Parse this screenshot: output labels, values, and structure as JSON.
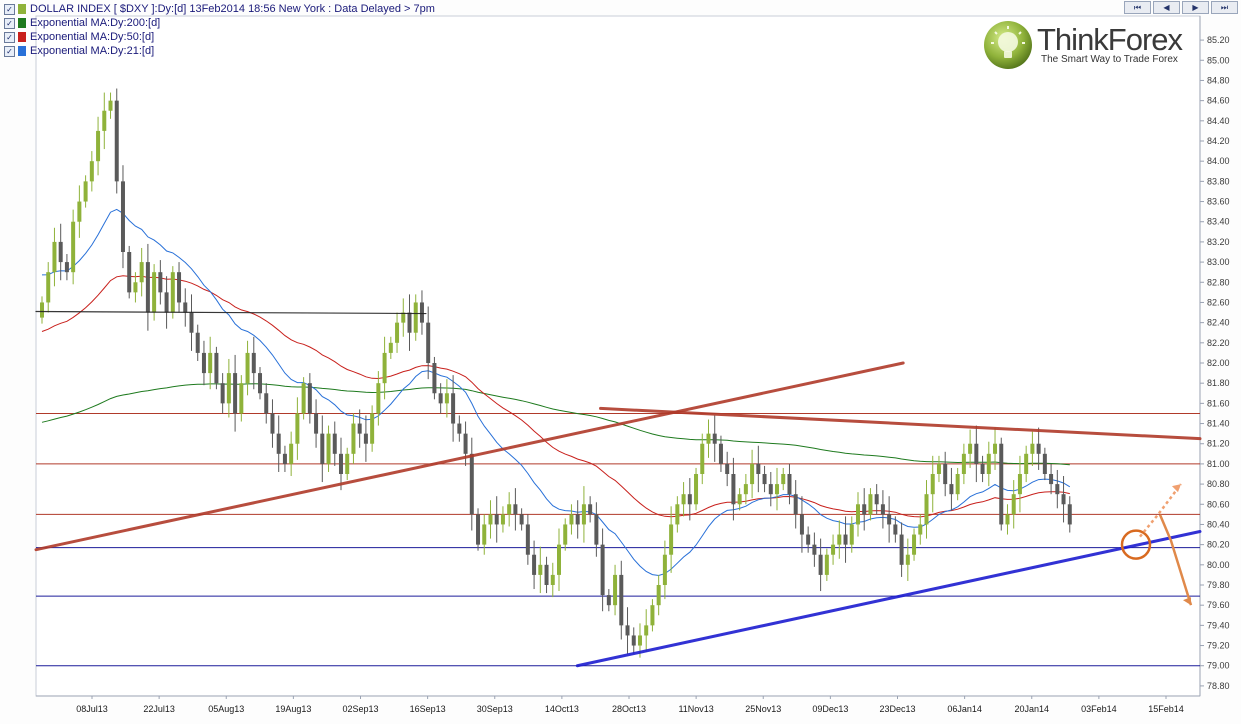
{
  "header": {
    "legend": [
      {
        "label": "DOLLAR INDEX [ $DXY ]:Dy:[d]  13Feb2014 18:56 New York : Data Delayed > 7pm",
        "color": "#8fb23a"
      },
      {
        "label": "Exponential MA:Dy:200:[d]",
        "color": "#1e7a1e"
      },
      {
        "label": "Exponential MA:Dy:50:[d]",
        "color": "#c8201c"
      },
      {
        "label": "Exponential MA:Dy:21:[d]",
        "color": "#2870d8"
      }
    ],
    "nav_buttons": [
      "⏮",
      "◀",
      "▶",
      "⏭"
    ]
  },
  "logo": {
    "title": "ThinkForex",
    "tagline": "The Smart Way to Trade Forex"
  },
  "chart_data": {
    "type": "candlestick",
    "yaxis": {
      "ticks": [
        "85.20",
        "85.00",
        "84.80",
        "84.60",
        "84.40",
        "84.20",
        "84.00",
        "83.80",
        "83.60",
        "83.40",
        "83.20",
        "83.00",
        "82.80",
        "82.60",
        "82.40",
        "82.20",
        "82.00",
        "81.80",
        "81.60",
        "81.40",
        "81.20",
        "81.00",
        "80.80",
        "80.60",
        "80.40",
        "80.20",
        "80.00",
        "79.80",
        "79.60",
        "79.40",
        "79.20",
        "79.00",
        "78.80"
      ],
      "range": [
        78.7,
        85.3
      ]
    },
    "xaxis": {
      "ticks": [
        "08Jul13",
        "22Jul13",
        "05Aug13",
        "19Aug13",
        "02Sep13",
        "16Sep13",
        "30Sep13",
        "14Oct13",
        "28Oct13",
        "11Nov13",
        "25Nov13",
        "09Dec13",
        "23Dec13",
        "06Jan14",
        "20Jan14",
        "03Feb14",
        "15Feb14"
      ]
    },
    "colors": {
      "up": "#8fb23a",
      "down": "#5a5a5a"
    },
    "closes": [
      82.6,
      82.9,
      83.2,
      83.0,
      82.9,
      83.4,
      83.6,
      83.8,
      84.0,
      84.3,
      84.5,
      84.6,
      83.8,
      83.1,
      82.7,
      82.8,
      83.0,
      82.5,
      82.9,
      82.7,
      82.5,
      82.9,
      82.6,
      82.5,
      82.3,
      82.1,
      81.9,
      82.1,
      81.8,
      81.6,
      81.9,
      81.5,
      81.8,
      82.1,
      81.9,
      81.7,
      81.5,
      81.3,
      81.1,
      81.0,
      81.2,
      81.5,
      81.8,
      81.5,
      81.3,
      81.0,
      81.3,
      81.1,
      80.9,
      81.1,
      81.4,
      81.3,
      81.2,
      81.5,
      81.8,
      82.1,
      82.2,
      82.4,
      82.5,
      82.3,
      82.6,
      82.4,
      82.0,
      81.7,
      81.6,
      81.7,
      81.4,
      81.3,
      81.1,
      80.5,
      80.2,
      80.4,
      80.5,
      80.4,
      80.5,
      80.6,
      80.5,
      80.4,
      80.1,
      79.9,
      80.0,
      79.8,
      79.9,
      80.2,
      80.4,
      80.5,
      80.4,
      80.6,
      80.5,
      80.2,
      79.7,
      79.6,
      79.9,
      79.4,
      79.3,
      79.2,
      79.3,
      79.4,
      79.6,
      79.8,
      80.1,
      80.4,
      80.6,
      80.7,
      80.6,
      80.9,
      81.2,
      81.3,
      81.2,
      81.0,
      80.9,
      80.6,
      80.7,
      80.8,
      81.0,
      80.9,
      80.8,
      80.7,
      80.8,
      80.9,
      80.7,
      80.5,
      80.3,
      80.2,
      80.1,
      79.9,
      80.1,
      80.2,
      80.3,
      80.2,
      80.4,
      80.6,
      80.5,
      80.7,
      80.6,
      80.5,
      80.4,
      80.3,
      80.0,
      80.1,
      80.3,
      80.4,
      80.7,
      80.9,
      81.0,
      80.8,
      80.7,
      80.9,
      81.1,
      81.2,
      81.0,
      80.9,
      81.1,
      81.2,
      80.4,
      80.5,
      80.7,
      80.9,
      81.1,
      81.2,
      81.1,
      80.9,
      80.8,
      80.7,
      80.6,
      80.4
    ],
    "ema_periods": [
      200,
      50,
      21
    ],
    "horizontal_levels": [
      81.5,
      81.0,
      80.5,
      80.17,
      79.69,
      79.0
    ],
    "trendlines": [
      {
        "color": "#b03a2a",
        "from": [
          0,
          80.15
        ],
        "to": [
          149,
          82.0
        ]
      },
      {
        "color": "#b03a2a",
        "from": [
          97,
          81.55
        ],
        "to": [
          200,
          81.25
        ]
      },
      {
        "color": "#1c1cd0",
        "from": [
          93,
          79.0
        ],
        "to": [
          200,
          80.33
        ]
      },
      {
        "color": "#222222",
        "from": [
          0,
          82.51
        ],
        "to": [
          67,
          82.49
        ]
      }
    ],
    "annotations": {
      "circle": {
        "x": 189,
        "y": 80.2,
        "color": "#d86a20"
      },
      "scenario_up": [
        80.2,
        80.8
      ],
      "scenario_down": [
        80.2,
        79.6
      ]
    }
  }
}
